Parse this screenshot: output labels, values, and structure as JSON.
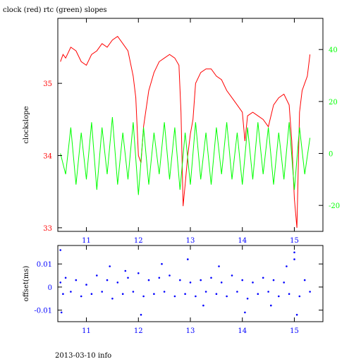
{
  "chart_data": [
    {
      "type": "line",
      "title": "clock (red) rtc (green) slopes",
      "ylabel_left": "clockslope",
      "x": {
        "range": [
          10.45,
          15.55
        ],
        "ticks": [
          11,
          12,
          13,
          14,
          15
        ]
      },
      "y_left": {
        "range": [
          32.95,
          35.9
        ],
        "ticks": [
          33,
          34,
          35
        ],
        "color": "#ff0000"
      },
      "y_right": {
        "range": [
          -30,
          52
        ],
        "ticks": [
          -20,
          0,
          20,
          40
        ],
        "color": "#00ff00"
      },
      "series": [
        {
          "color": "#ff0000",
          "axis": "left",
          "points": [
            [
              10.5,
              35.3
            ],
            [
              10.55,
              35.4
            ],
            [
              10.6,
              35.35
            ],
            [
              10.7,
              35.5
            ],
            [
              10.8,
              35.45
            ],
            [
              10.9,
              35.3
            ],
            [
              11.0,
              35.25
            ],
            [
              11.1,
              35.4
            ],
            [
              11.2,
              35.45
            ],
            [
              11.3,
              35.55
            ],
            [
              11.4,
              35.5
            ],
            [
              11.5,
              35.6
            ],
            [
              11.6,
              35.65
            ],
            [
              11.7,
              35.55
            ],
            [
              11.8,
              35.45
            ],
            [
              11.9,
              35.1
            ],
            [
              11.95,
              34.8
            ],
            [
              12.0,
              34.0
            ],
            [
              12.05,
              33.9
            ],
            [
              12.1,
              34.4
            ],
            [
              12.2,
              34.9
            ],
            [
              12.3,
              35.15
            ],
            [
              12.4,
              35.3
            ],
            [
              12.5,
              35.35
            ],
            [
              12.6,
              35.4
            ],
            [
              12.7,
              35.35
            ],
            [
              12.78,
              35.25
            ],
            [
              12.82,
              34.6
            ],
            [
              12.86,
              33.3
            ],
            [
              12.9,
              33.6
            ],
            [
              12.95,
              34.0
            ],
            [
              13.0,
              34.3
            ],
            [
              13.05,
              34.5
            ],
            [
              13.1,
              35.0
            ],
            [
              13.2,
              35.15
            ],
            [
              13.3,
              35.2
            ],
            [
              13.4,
              35.2
            ],
            [
              13.5,
              35.1
            ],
            [
              13.6,
              35.05
            ],
            [
              13.7,
              34.9
            ],
            [
              13.8,
              34.8
            ],
            [
              13.9,
              34.7
            ],
            [
              14.0,
              34.6
            ],
            [
              14.05,
              34.2
            ],
            [
              14.1,
              34.55
            ],
            [
              14.2,
              34.6
            ],
            [
              14.3,
              34.55
            ],
            [
              14.4,
              34.5
            ],
            [
              14.5,
              34.4
            ],
            [
              14.6,
              34.7
            ],
            [
              14.7,
              34.8
            ],
            [
              14.8,
              34.85
            ],
            [
              14.9,
              34.7
            ],
            [
              14.95,
              34.2
            ],
            [
              15.0,
              33.4
            ],
            [
              15.05,
              33.0
            ],
            [
              15.1,
              34.6
            ],
            [
              15.15,
              34.9
            ],
            [
              15.2,
              35.0
            ],
            [
              15.25,
              35.1
            ],
            [
              15.3,
              35.4
            ]
          ]
        },
        {
          "color": "#00ff00",
          "axis": "right",
          "points": [
            [
              10.5,
              0
            ],
            [
              10.6,
              -8
            ],
            [
              10.7,
              10
            ],
            [
              10.8,
              -12
            ],
            [
              10.9,
              8
            ],
            [
              11.0,
              -10
            ],
            [
              11.1,
              12
            ],
            [
              11.2,
              -14
            ],
            [
              11.3,
              10
            ],
            [
              11.4,
              -8
            ],
            [
              11.5,
              14
            ],
            [
              11.6,
              -12
            ],
            [
              11.7,
              8
            ],
            [
              11.8,
              -10
            ],
            [
              11.9,
              12
            ],
            [
              12.0,
              -16
            ],
            [
              12.1,
              10
            ],
            [
              12.2,
              -12
            ],
            [
              12.3,
              8
            ],
            [
              12.4,
              -8
            ],
            [
              12.5,
              12
            ],
            [
              12.6,
              -10
            ],
            [
              12.7,
              10
            ],
            [
              12.8,
              -14
            ],
            [
              12.9,
              8
            ],
            [
              13.0,
              -12
            ],
            [
              13.1,
              12
            ],
            [
              13.2,
              -10
            ],
            [
              13.3,
              8
            ],
            [
              13.4,
              -12
            ],
            [
              13.5,
              10
            ],
            [
              13.6,
              -8
            ],
            [
              13.7,
              12
            ],
            [
              13.8,
              -10
            ],
            [
              13.9,
              8
            ],
            [
              14.0,
              -12
            ],
            [
              14.1,
              10
            ],
            [
              14.2,
              -10
            ],
            [
              14.3,
              12
            ],
            [
              14.4,
              -8
            ],
            [
              14.5,
              10
            ],
            [
              14.6,
              -12
            ],
            [
              14.7,
              8
            ],
            [
              14.8,
              -10
            ],
            [
              14.9,
              12
            ],
            [
              15.0,
              -14
            ],
            [
              15.1,
              10
            ],
            [
              15.2,
              -8
            ],
            [
              15.3,
              6
            ]
          ]
        }
      ]
    },
    {
      "type": "scatter",
      "ylabel": "offset(ms)",
      "x": {
        "range": [
          10.45,
          15.55
        ],
        "ticks": [
          11,
          12,
          13,
          14,
          15
        ]
      },
      "y": {
        "range": [
          -0.015,
          0.018
        ],
        "ticks": [
          -0.01,
          0,
          0.01
        ]
      },
      "series": [
        {
          "color": "#0000ff",
          "points": [
            [
              10.5,
              0.002
            ],
            [
              10.55,
              -0.003
            ],
            [
              10.6,
              0.004
            ],
            [
              10.7,
              -0.002
            ],
            [
              10.8,
              0.003
            ],
            [
              10.9,
              -0.004
            ],
            [
              11.0,
              0.001
            ],
            [
              11.1,
              -0.003
            ],
            [
              11.2,
              0.005
            ],
            [
              11.3,
              -0.002
            ],
            [
              11.4,
              0.003
            ],
            [
              11.5,
              -0.005
            ],
            [
              11.6,
              0.002
            ],
            [
              11.7,
              -0.003
            ],
            [
              11.8,
              0.004
            ],
            [
              11.9,
              -0.002
            ],
            [
              12.0,
              0.006
            ],
            [
              12.1,
              -0.004
            ],
            [
              12.2,
              0.003
            ],
            [
              12.3,
              -0.003
            ],
            [
              12.4,
              0.004
            ],
            [
              12.5,
              -0.002
            ],
            [
              12.6,
              0.005
            ],
            [
              12.7,
              -0.004
            ],
            [
              12.8,
              0.003
            ],
            [
              12.9,
              -0.003
            ],
            [
              13.0,
              0.002
            ],
            [
              13.1,
              -0.004
            ],
            [
              13.2,
              0.003
            ],
            [
              13.3,
              -0.002
            ],
            [
              13.4,
              0.004
            ],
            [
              13.5,
              -0.003
            ],
            [
              13.6,
              0.002
            ],
            [
              13.7,
              -0.004
            ],
            [
              13.8,
              0.005
            ],
            [
              13.9,
              -0.002
            ],
            [
              14.0,
              0.003
            ],
            [
              14.1,
              -0.005
            ],
            [
              14.2,
              0.002
            ],
            [
              14.3,
              -0.003
            ],
            [
              14.4,
              0.004
            ],
            [
              14.5,
              -0.002
            ],
            [
              14.6,
              0.003
            ],
            [
              14.7,
              -0.004
            ],
            [
              14.8,
              0.002
            ],
            [
              14.9,
              -0.003
            ],
            [
              15.0,
              0.012
            ],
            [
              15.1,
              -0.004
            ],
            [
              15.2,
              0.003
            ],
            [
              15.3,
              -0.002
            ],
            [
              10.5,
              0.016
            ],
            [
              10.52,
              -0.011
            ],
            [
              11.45,
              0.009
            ],
            [
              12.05,
              -0.012
            ],
            [
              12.45,
              0.01
            ],
            [
              12.95,
              0.012
            ],
            [
              13.55,
              0.009
            ],
            [
              14.05,
              -0.011
            ],
            [
              14.55,
              -0.008
            ],
            [
              15.0,
              0.015
            ],
            [
              15.05,
              -0.012
            ],
            [
              11.75,
              0.007
            ],
            [
              13.25,
              -0.008
            ],
            [
              14.85,
              0.009
            ]
          ]
        }
      ]
    }
  ],
  "footer": "2013-03-10 info"
}
